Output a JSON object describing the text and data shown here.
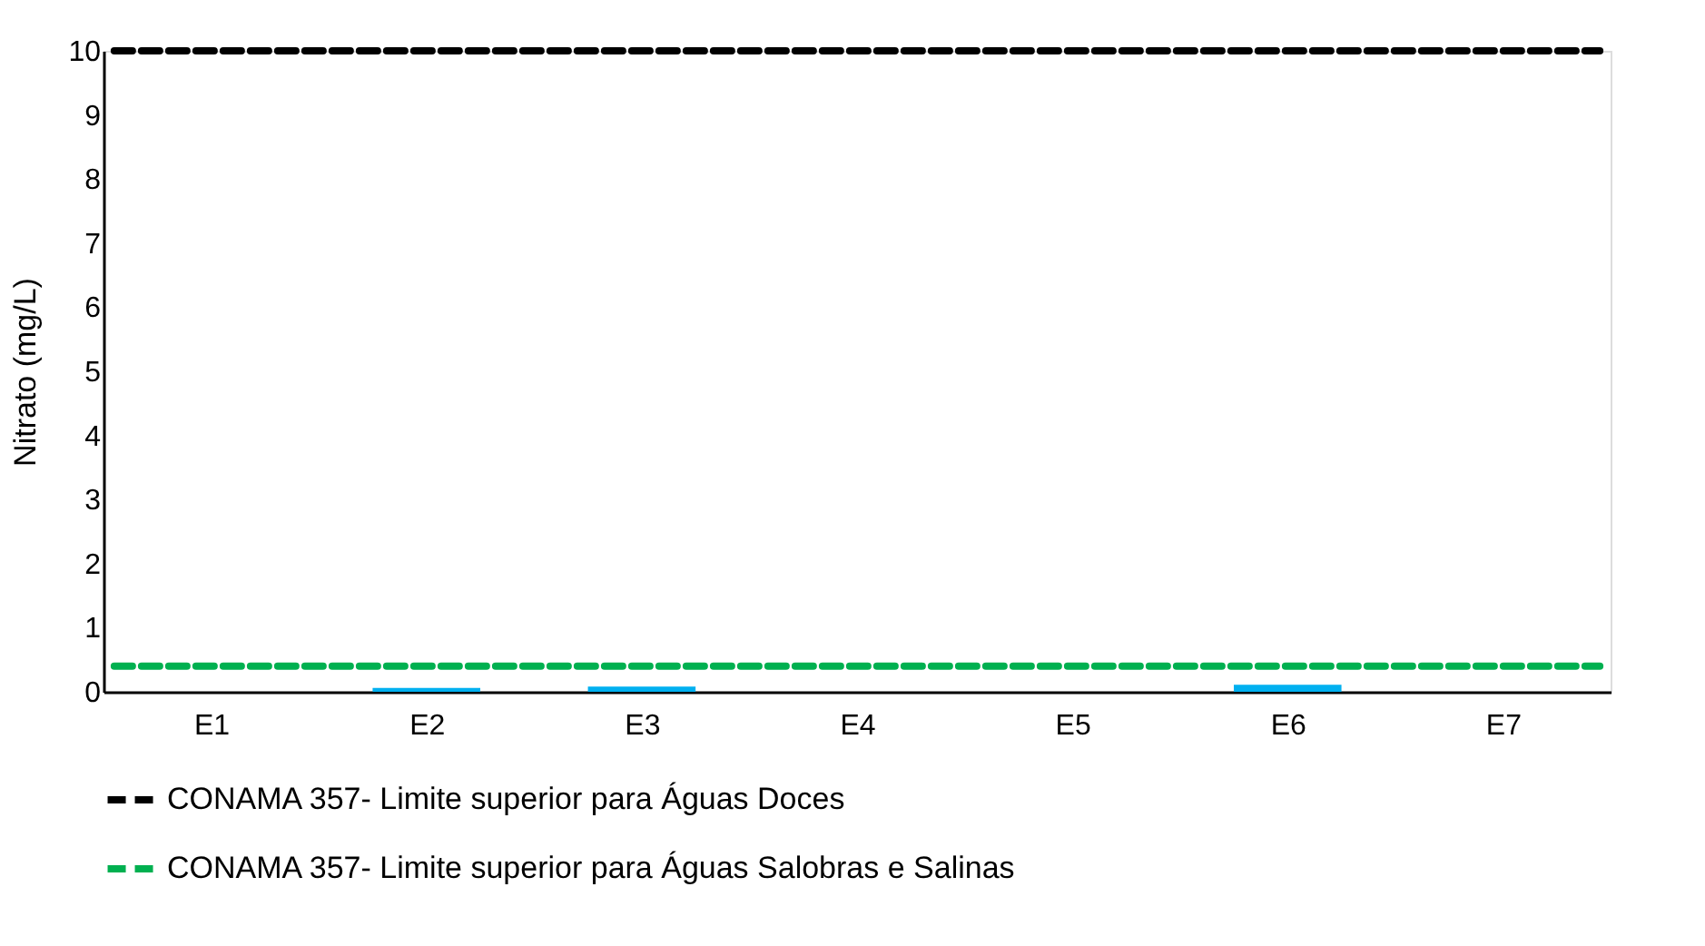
{
  "chart_data": {
    "type": "bar",
    "ylabel": "Nitrato (mg/L)",
    "categories": [
      "E1",
      "E2",
      "E3",
      "E4",
      "E5",
      "E6",
      "E7"
    ],
    "values": [
      0,
      0.06,
      0.08,
      0,
      0,
      0.11,
      0
    ],
    "color": "#00b0f0",
    "ylim": [
      0,
      10
    ],
    "yticks": [
      0,
      1,
      2,
      3,
      4,
      5,
      6,
      7,
      8,
      9,
      10
    ],
    "grid": false,
    "legend": "bottom",
    "ref_lines": [
      {
        "axis": "y",
        "value": 10,
        "label": "CONAMA 357- Limite superior para Águas Doces",
        "color": "#000000",
        "line_style": "dashed"
      },
      {
        "axis": "y",
        "value": 0.4,
        "label": "CONAMA 357- Limite superior para Águas Salobras e Salinas",
        "color": "#00b050",
        "line_style": "dashed"
      }
    ]
  }
}
